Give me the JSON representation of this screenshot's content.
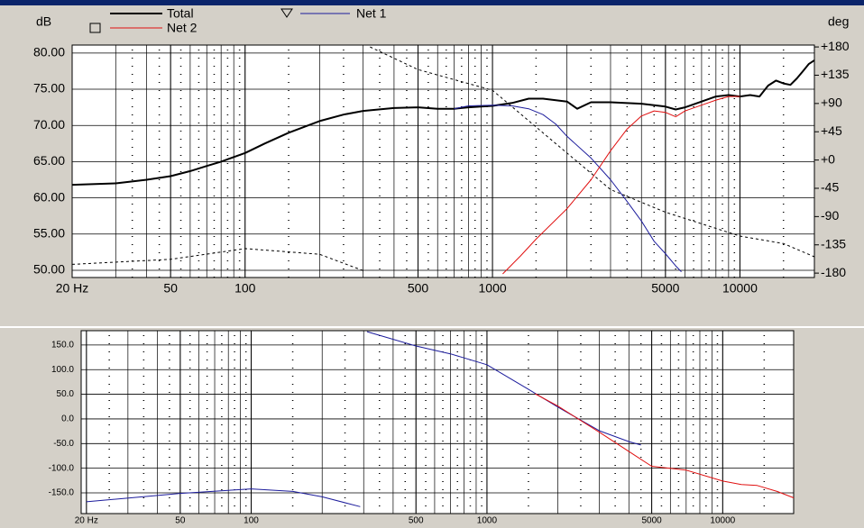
{
  "chart_data": [
    {
      "type": "line",
      "y_label": "dB",
      "y2_label": "deg",
      "log_x": true,
      "grid": true,
      "xlim": [
        20,
        20000
      ],
      "xticks": [
        {
          "value": 20,
          "label": "20 Hz"
        },
        50,
        100,
        500,
        1000,
        5000,
        10000
      ],
      "ylim": [
        49,
        81.1
      ],
      "yticks": [
        {
          "value": 50,
          "label": "50.00"
        },
        {
          "value": 55,
          "label": "55.00"
        },
        {
          "value": 60,
          "label": "60.00"
        },
        {
          "value": 65,
          "label": "65.00"
        },
        {
          "value": 70,
          "label": "70.00"
        },
        {
          "value": 75,
          "label": "75.00"
        },
        {
          "value": 80,
          "label": "80.00"
        }
      ],
      "y2lim": [
        -187,
        183
      ],
      "y2ticks": [
        {
          "value": 180,
          "label": "+180"
        },
        {
          "value": 135,
          "label": "+135"
        },
        {
          "value": 90,
          "label": "+90"
        },
        {
          "value": 45,
          "label": "+45"
        },
        {
          "value": 0,
          "label": "+0"
        },
        -45,
        -90,
        -135,
        -180
      ],
      "series": [
        {
          "name": "Total",
          "color": "#000000",
          "width": 2,
          "x": [
            20,
            30,
            40,
            50,
            60,
            70,
            80,
            100,
            120,
            150,
            200,
            250,
            300,
            400,
            500,
            600,
            700,
            800,
            900,
            1000,
            1200,
            1400,
            1600,
            2000,
            2200,
            2500,
            3000,
            4000,
            5000,
            5500,
            6000,
            7000,
            8000,
            9000,
            10000,
            11000,
            12000,
            13000,
            14000,
            15000,
            16000,
            17000,
            18000,
            19000,
            20000
          ],
          "values": [
            61.8,
            62.0,
            62.5,
            63.0,
            63.7,
            64.4,
            65.0,
            66.2,
            67.5,
            69.0,
            70.6,
            71.5,
            72.0,
            72.4,
            72.5,
            72.3,
            72.3,
            72.5,
            72.6,
            72.7,
            73.1,
            73.7,
            73.7,
            73.3,
            72.3,
            73.2,
            73.2,
            73.0,
            72.6,
            72.2,
            72.5,
            73.3,
            74.0,
            74.2,
            74.0,
            74.2,
            74.0,
            75.5,
            76.2,
            75.8,
            75.6,
            76.5,
            77.5,
            78.5,
            79.0
          ]
        },
        {
          "name": "Net 1",
          "color": "#1c1c9c",
          "width": 1,
          "x": [
            700,
            800,
            1000,
            1200,
            1400,
            1600,
            1800,
            2000,
            2500,
            3000,
            3500,
            4000,
            4500,
            5000,
            5500,
            5800
          ],
          "values": [
            72.3,
            72.7,
            72.8,
            72.7,
            72.3,
            71.5,
            70.2,
            68.5,
            65.5,
            62.5,
            59.5,
            56.8,
            54.0,
            52.3,
            50.6,
            49.8
          ]
        },
        {
          "name": "Net 2",
          "color": "#e01010",
          "width": 1,
          "x": [
            1100,
            1300,
            1500,
            2000,
            2500,
            3000,
            3500,
            4000,
            4500,
            5000,
            5500,
            6000,
            7000,
            8000,
            9000,
            10000
          ],
          "values": [
            49.5,
            52.0,
            54.3,
            58.5,
            62.5,
            66.5,
            69.5,
            71.3,
            72.0,
            71.8,
            71.2,
            72.0,
            72.8,
            73.5,
            74.0,
            74.0
          ]
        },
        {
          "color": "#000000",
          "width": 1,
          "dashed": true,
          "axis": "y2",
          "x": [
            20,
            50,
            100,
            200,
            300,
            310,
            320,
            500,
            1000,
            2000,
            3000,
            5000,
            10000,
            15000,
            20000
          ],
          "values": [
            -166,
            -158,
            -141,
            -150,
            -176,
            null,
            180,
            144,
            111,
            11,
            -47,
            -83,
            -121,
            -133,
            -154
          ]
        }
      ]
    },
    {
      "type": "line",
      "log_x": true,
      "grid": true,
      "xlim": [
        19,
        20000
      ],
      "xticks": [
        {
          "value": 20,
          "label": "20 Hz"
        },
        50,
        100,
        500,
        1000,
        5000,
        10000
      ],
      "ylim": [
        -192,
        179
      ],
      "yticks": [
        {
          "value": 150,
          "label": "150.0"
        },
        {
          "value": 100,
          "label": "100.0"
        },
        {
          "value": 50,
          "label": "50.0"
        },
        {
          "value": 0,
          "label": "0.0"
        },
        {
          "value": -50,
          "label": "-50.0"
        },
        {
          "value": -100,
          "label": "-100.0"
        },
        {
          "value": -150,
          "label": "-150.0"
        }
      ],
      "series": [
        {
          "color": "#1c1c9c",
          "width": 1,
          "x": [
            20,
            50,
            100,
            150,
            200,
            290,
            300,
            310,
            500,
            700,
            1000,
            1500,
            2000,
            3000,
            4000,
            4500
          ],
          "values": [
            -168,
            -151,
            -142,
            -147,
            -158,
            -178,
            null,
            177,
            148,
            132,
            110,
            60,
            24,
            -24,
            -46,
            -53
          ]
        },
        {
          "color": "#e01010",
          "width": 1,
          "x": [
            1600,
            2000,
            3000,
            4000,
            5000,
            7000,
            10000,
            12000,
            14000,
            17000,
            20000
          ],
          "values": [
            51,
            26,
            -27,
            -66,
            -96,
            -104,
            -126,
            -133,
            -135,
            -147,
            -160
          ]
        }
      ]
    }
  ]
}
